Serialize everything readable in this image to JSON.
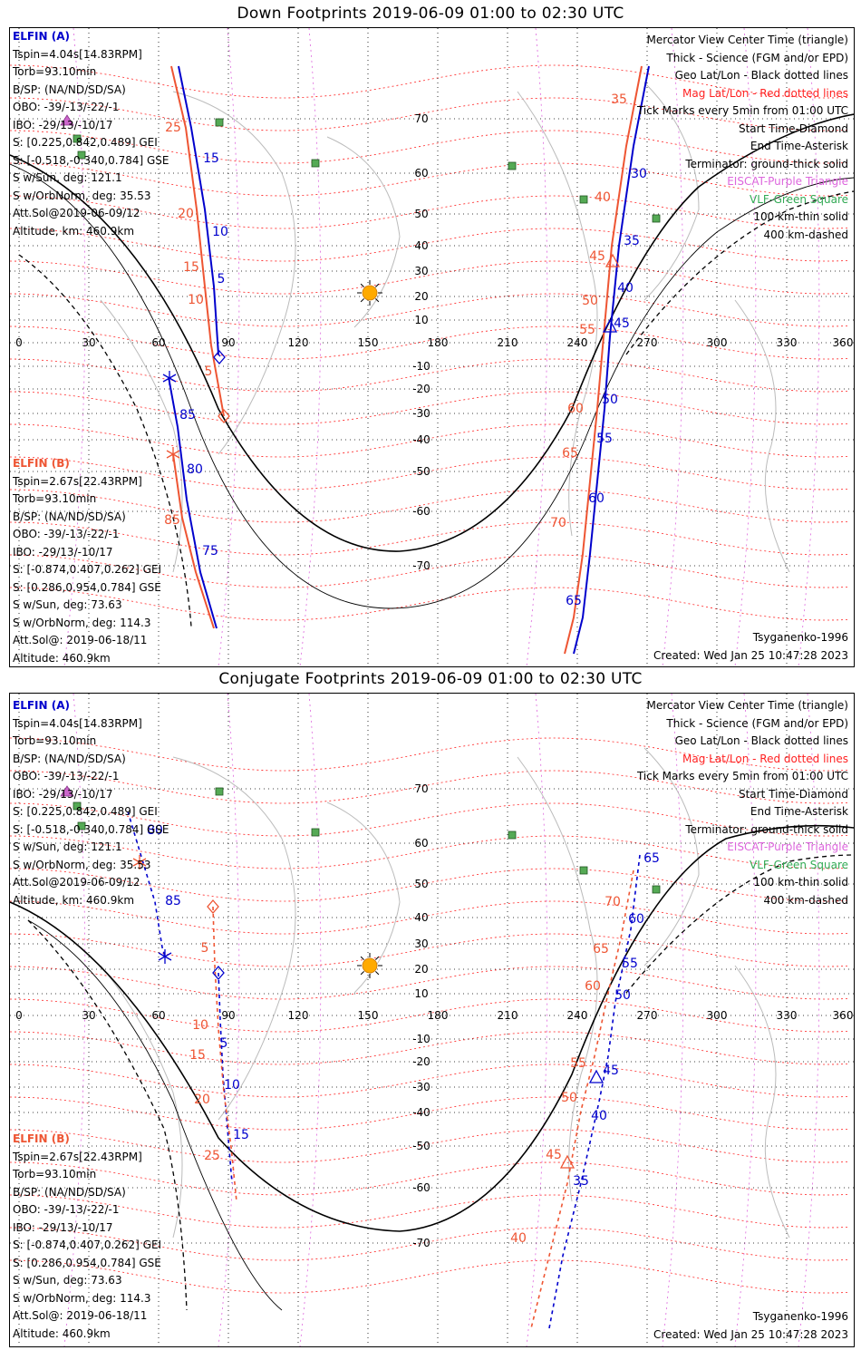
{
  "panels": [
    {
      "title": "Down Footprints 2019-06-09 01:00 to 02:30 UTC",
      "elfin_a": {
        "label": "ELFIN (A)",
        "lines": [
          "Tspin=4.04s[14.83RPM]",
          "Torb=93.10min",
          "B/SP: (NA/ND/SD/SA)",
          "OBO: -39/-13/-22/-1",
          "IBO: -29/13/-10/17",
          "S: [0.225,0.842,0.489] GEI",
          "S: [-0.518,-0.340,0.784] GSE",
          "S w/Sun, deg: 121.1",
          "S w/OrbNorm, deg: 35.53",
          "Att.Sol@2019-06-09/12",
          "Altitude, km: 460.9km"
        ]
      },
      "elfin_b": {
        "label": "ELFIN (B)",
        "lines": [
          "Tspin=2.67s[22.43RPM]",
          "Torb=93.10min",
          "B/SP: (NA/ND/SD/SA)",
          "OBO: -39/-13/-22/-1",
          "IBO: -29/13/-10/17",
          "S: [-0.874,0.407,0.262] GEI",
          "S: [0.286,0.954,0.784] GSE",
          "S w/Sun, deg: 73.63",
          "S w/OrbNorm, deg: 114.3",
          "Att.Sol@: 2019-06-18/11",
          "Altitude: 460.9km"
        ]
      },
      "model": "Tsyganenko-1996",
      "created": "Created: Wed Jan 25 10:47:28 2023"
    },
    {
      "title": "Conjugate Footprints 2019-06-09 01:00 to 02:30 UTC",
      "elfin_a": {
        "label": "ELFIN (A)",
        "lines": [
          "Tspin=4.04s[14.83RPM]",
          "Torb=93.10min",
          "B/SP: (NA/ND/SD/SA)",
          "OBO: -39/-13/-22/-1",
          "IBO: -29/13/-10/17",
          "S: [0.225,0.842,0.489] GEI",
          "S: [-0.518,-0.340,0.784] GSE",
          "S w/Sun, deg: 121.1",
          "S w/OrbNorm, deg: 35.53",
          "Att.Sol@2019-06-09/12",
          "Altitude, km: 460.9km"
        ]
      },
      "elfin_b": {
        "label": "ELFIN (B)",
        "lines": [
          "Tspin=2.67s[22.43RPM]",
          "Torb=93.10min",
          "B/SP: (NA/ND/SD/SA)",
          "OBO: -39/-13/-22/-1",
          "IBO: -29/13/-10/17",
          "S: [-0.874,0.407,0.262] GEI",
          "S: [0.286,0.954,0.784] GSE",
          "S w/Sun, deg: 73.63",
          "S w/OrbNorm, deg: 114.3",
          "Att.Sol@: 2019-06-18/11",
          "Altitude: 460.9km"
        ]
      },
      "model": "Tsyganenko-1996",
      "created": "Created: Wed Jan 25 10:47:28 2023"
    }
  ],
  "legend": [
    {
      "text": "Mercator View Center Time (triangle)",
      "color": "#000000"
    },
    {
      "text": "Thick - Science (FGM and/or EPD)",
      "color": "#000000"
    },
    {
      "text": "Geo Lat/Lon - Black dotted lines",
      "color": "#000000"
    },
    {
      "text": "Mag Lat/Lon - Red dotted lines",
      "color": "#ff2222"
    },
    {
      "text": "Tick Marks every 5min from 01:00 UTC",
      "color": "#000000"
    },
    {
      "text": "Start Time-Diamond",
      "color": "#000000"
    },
    {
      "text": "End Time-Asterisk",
      "color": "#000000"
    },
    {
      "text": "Terminator: ground-thick solid",
      "color": "#000000"
    },
    {
      "text": "EISCAT-Purple Triangle",
      "color": "#dd66dd"
    },
    {
      "text": "VLF-Green Square",
      "color": "#33aa55"
    },
    {
      "text": "100 km-thin solid",
      "color": "#000000"
    },
    {
      "text": "400 km-dashed",
      "color": "#000000"
    }
  ],
  "axes": {
    "lon_ticks": [
      "0",
      "30",
      "60",
      "90",
      "120",
      "150",
      "180",
      "210",
      "240",
      "270",
      "300",
      "330",
      "360"
    ],
    "lat_ticks": [
      "70",
      "60",
      "50",
      "40",
      "30",
      "20",
      "10",
      "-10",
      "-20",
      "-30",
      "-40",
      "-50",
      "-60",
      "-70"
    ]
  },
  "colors": {
    "elfin_a": "#0000cc",
    "elfin_b": "#ee5533",
    "mag_grid": "#ff2222",
    "sun": "#ffaa00"
  },
  "track_labels": {
    "down": {
      "a1": [
        "15",
        "10",
        "5"
      ],
      "b1": [
        "25",
        "20",
        "15",
        "10",
        "5"
      ],
      "a2": [
        "30",
        "35",
        "40",
        "45",
        "50",
        "55",
        "60",
        "65"
      ],
      "b2": [
        "35",
        "40",
        "45",
        "50",
        "55",
        "60",
        "65",
        "70"
      ],
      "a3": [
        "85",
        "80",
        "75"
      ],
      "b3": [
        "85"
      ]
    },
    "conj": {
      "a1": [
        "5",
        "10",
        "15"
      ],
      "b1": [
        "5",
        "10",
        "15",
        "20",
        "25"
      ],
      "a2": [
        "65",
        "60",
        "55",
        "50",
        "45",
        "40",
        "35"
      ],
      "b2": [
        "70",
        "65",
        "60",
        "55",
        "50",
        "45",
        "40"
      ],
      "a3": [
        "80",
        "85"
      ]
    }
  }
}
